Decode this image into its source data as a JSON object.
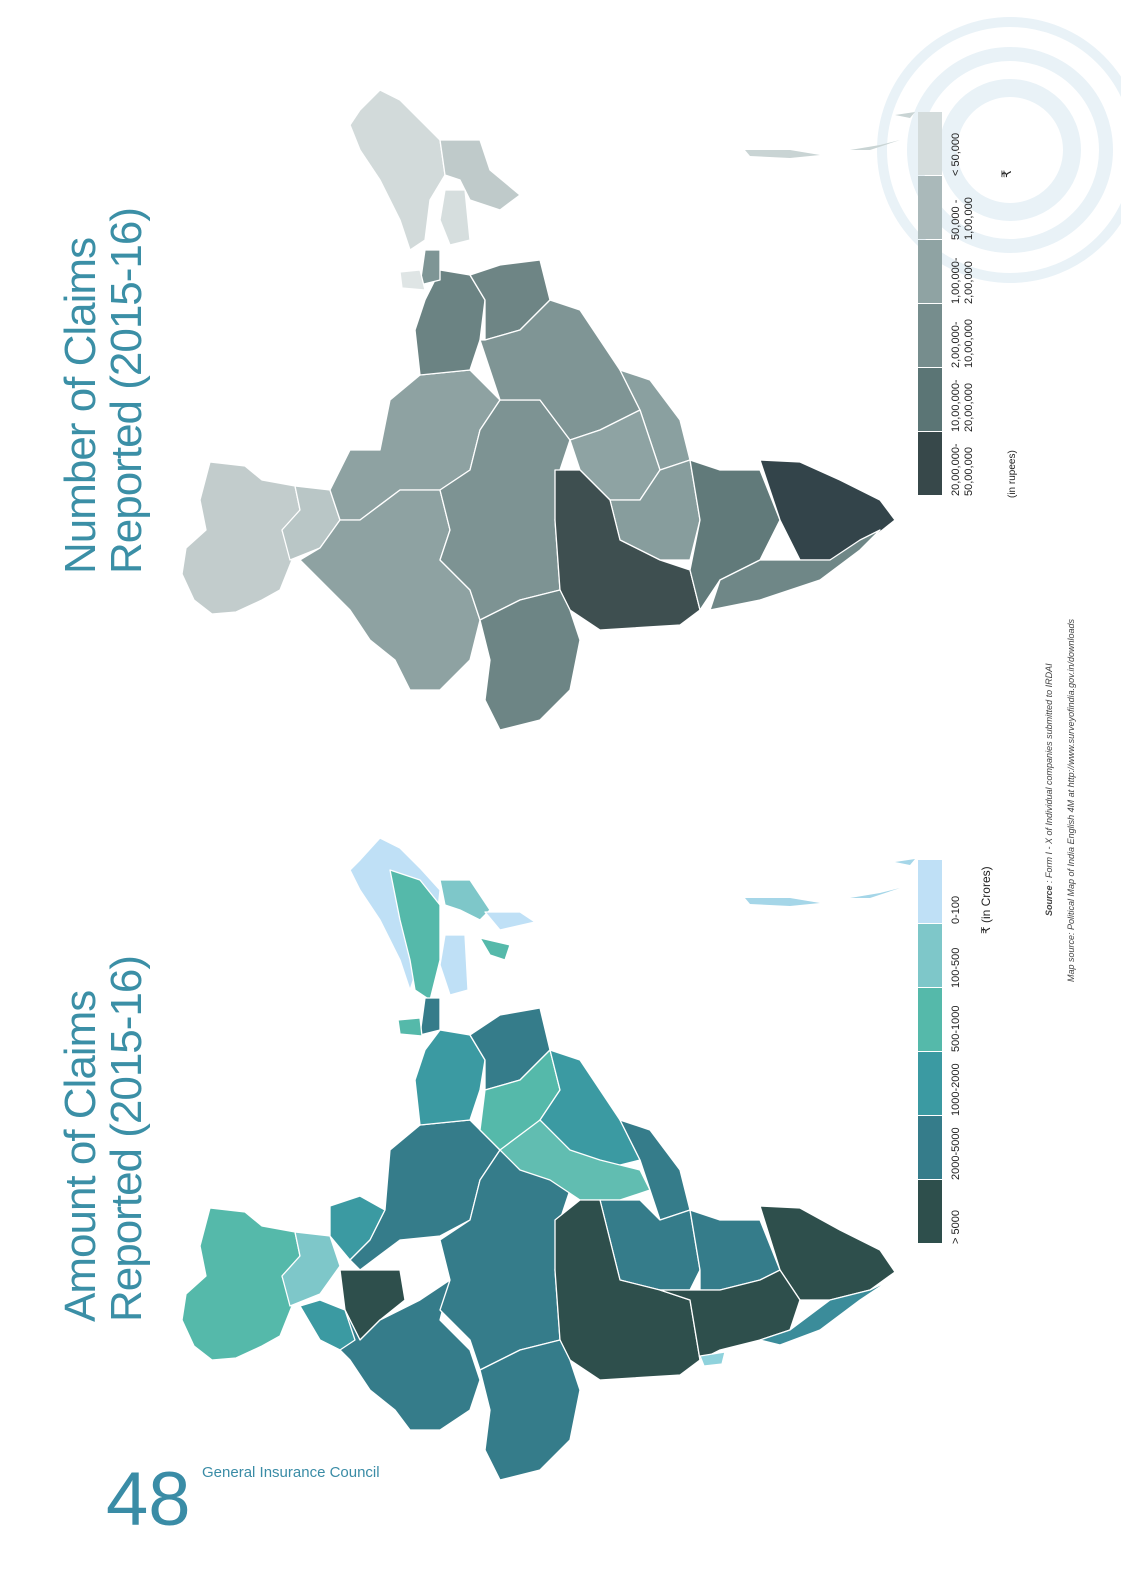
{
  "page": {
    "number": "48",
    "publisher": "General Insurance Council"
  },
  "map_number": {
    "title_line1": "Number of Claims",
    "title_line2": "Reported (2015-16)",
    "legend": {
      "bins": [
        {
          "label1": "< 50,000",
          "label2": "",
          "color": "#d4dcdc"
        },
        {
          "label1": "50,000 -",
          "label2": "1,00,000",
          "color": "#aab9ba"
        },
        {
          "label1": "1,00,000-",
          "label2": "2,00,000",
          "color": "#8fa3a3"
        },
        {
          "label1": "2,00,000-",
          "label2": "10,00,000",
          "color": "#768d8d"
        },
        {
          "label1": "10,00,000-",
          "label2": "20,00,000",
          "color": "#5b7575"
        },
        {
          "label1": "20,00,000-",
          "label2": "50,00,000",
          "color": "#37484a"
        }
      ],
      "currency_symbol": "₹",
      "unit": "(in rupees)"
    }
  },
  "map_amount": {
    "title_line1": "Amount of Claims",
    "title_line2": "Reported (2015-16)",
    "legend": {
      "bins": [
        {
          "label": "0-100",
          "color": "#bfe0f6"
        },
        {
          "label": "100-500",
          "color": "#7ec7c9"
        },
        {
          "label": "500-1000",
          "color": "#55b9aa"
        },
        {
          "label": "1000-2000",
          "color": "#3b9aa2"
        },
        {
          "label": "2000-5000",
          "color": "#357c8a"
        },
        {
          "label": "> 5000",
          "color": "#2e4f4c"
        }
      ],
      "unit": "₹ (in Crores)"
    }
  },
  "source": {
    "line1_bold": "Source",
    "line1": " : Form I - X of Individual companies submitted to IRDAI",
    "line2": "Map source: Political Map of India English 4M at http://www.surveyofindia.gov.in/downloads"
  }
}
